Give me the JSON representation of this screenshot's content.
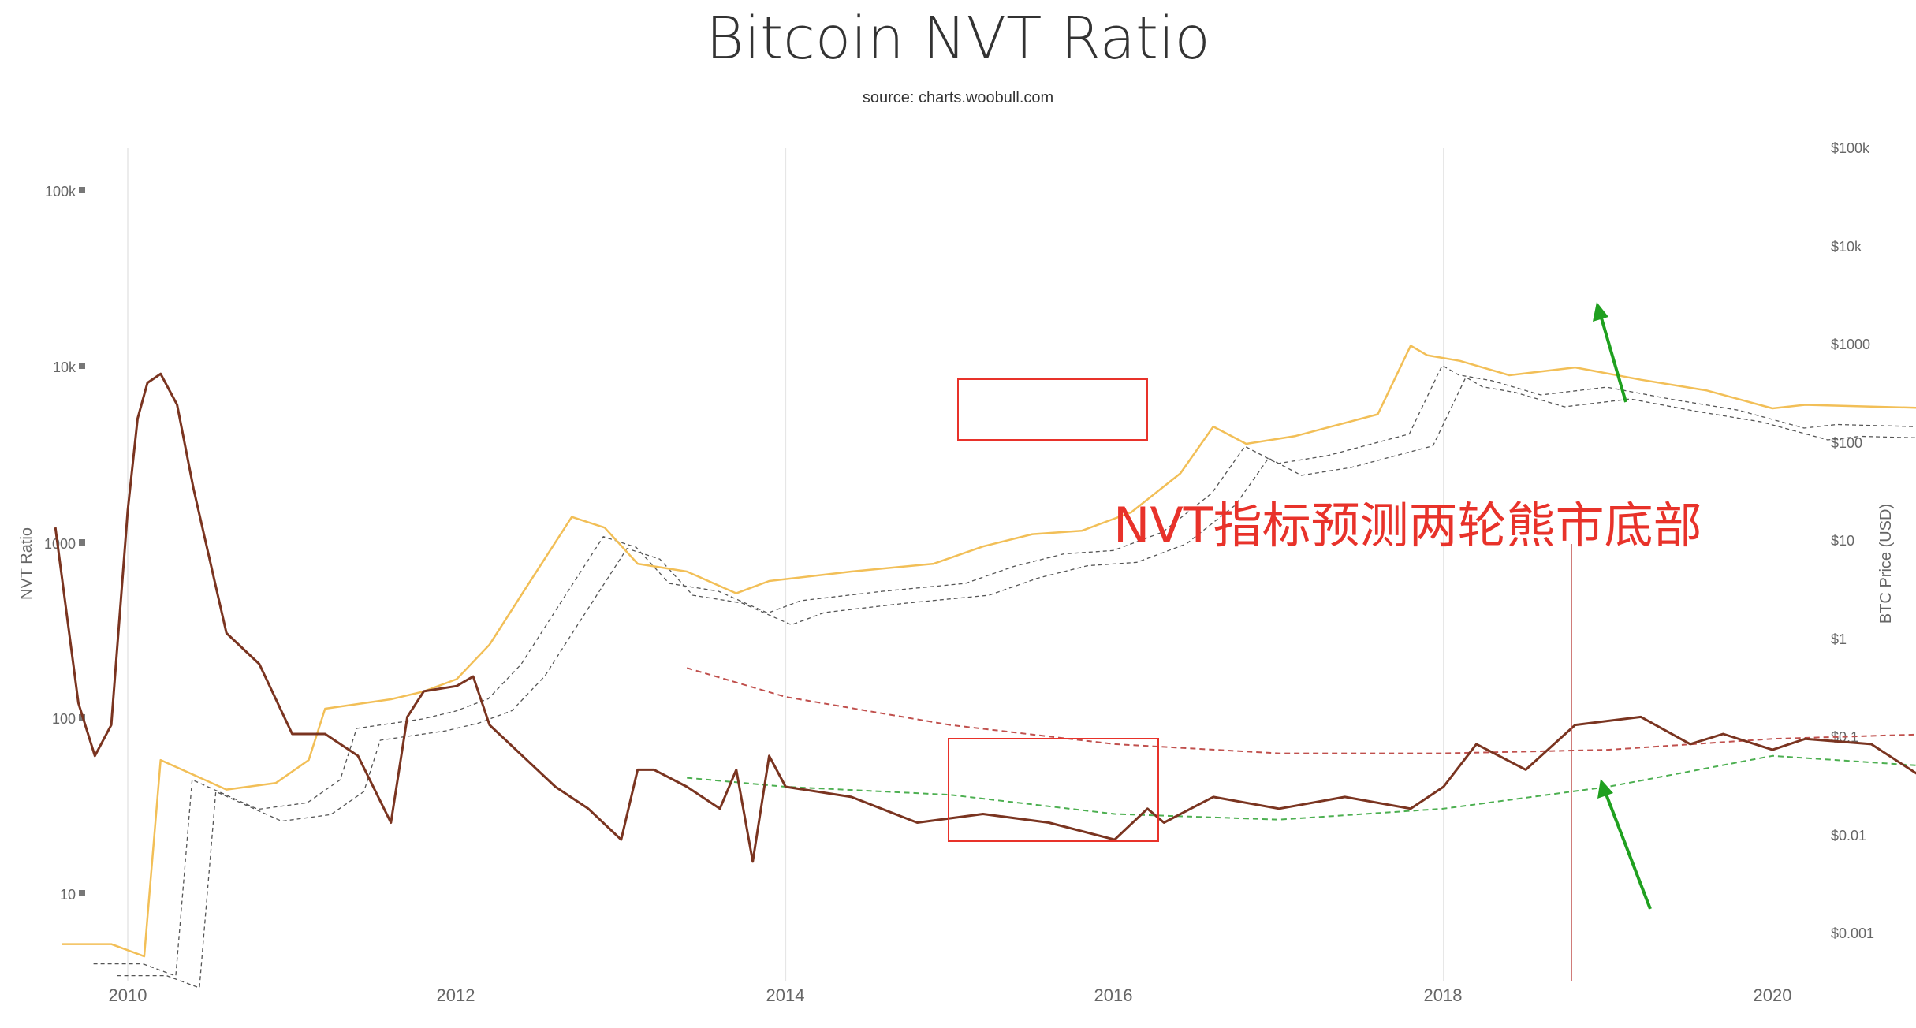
{
  "chart_data": {
    "type": "line",
    "title": "Bitcoin NVT Ratio",
    "subtitle": "source: charts.woobull.com",
    "xlabel": "",
    "ylabel_left": "NVT Ratio",
    "ylabel_right": "BTC Price (USD)",
    "x_ticks": [
      "2010",
      "2012",
      "2014",
      "2016",
      "2018",
      "2020"
    ],
    "y_left_ticks": [
      "100k",
      "10k",
      "1000",
      "100",
      "10"
    ],
    "y_right_ticks": [
      "$100k",
      "$10k",
      "$1000",
      "$100",
      "$10",
      "$1",
      "$0.1",
      "$0.01",
      "$0.001"
    ],
    "y_left_scale": "log",
    "y_right_scale": "log",
    "xlim": [
      2009.8,
      2020.0
    ],
    "y_left_lim": [
      3,
      200000
    ],
    "y_right_lim": [
      0.0005,
      100000
    ],
    "grid": "vertical",
    "colors": {
      "price": "#f2bf57",
      "nvt": "#7a3420",
      "upper_band": "#c0504d",
      "lower_band": "#4caf50",
      "moving_average": "#555555",
      "annotation": "#e8322a",
      "arrow": "#1fa01f"
    },
    "series": [
      {
        "axis": "right",
        "x": [
          2009.8,
          2009.95,
          2010.05,
          2010.1,
          2010.3,
          2010.45,
          2010.55,
          2010.6,
          2010.8,
          2010.9,
          2011.0,
          2011.1,
          2011.2,
          2011.35,
          2011.45,
          2011.55,
          2011.7,
          2011.85,
          2011.95,
          2012.2,
          2012.45,
          2012.6,
          2012.75,
          2012.9,
          2013.05,
          2013.2,
          2013.3,
          2013.4,
          2013.55,
          2013.8,
          2013.9,
          2013.95,
          2014.05,
          2014.2,
          2014.4,
          2014.6,
          2014.8,
          2015.0,
          2015.1,
          2015.3,
          2015.5,
          2015.7,
          2015.85,
          2016.0,
          2016.2,
          2016.45,
          2016.6,
          2016.8,
          2017.0,
          2017.2,
          2017.4,
          2017.6,
          2017.8,
          2017.95,
          2018.05,
          2018.2,
          2018.45,
          2018.6,
          2018.85,
          2018.95,
          2019.1,
          2019.25,
          2019.4,
          2019.5,
          2019.65,
          2019.85
        ],
        "values": [
          0.0008,
          0.0008,
          0.0006,
          0.06,
          0.03,
          0.035,
          0.06,
          0.2,
          0.25,
          0.3,
          0.4,
          0.9,
          3,
          18,
          14,
          6,
          5,
          3,
          4,
          5,
          6,
          9,
          12,
          13,
          20,
          50,
          150,
          100,
          120,
          200,
          1000,
          800,
          700,
          500,
          600,
          450,
          350,
          230,
          250,
          240,
          230,
          290,
          400,
          430,
          420,
          650,
          600,
          700,
          900,
          1200,
          2200,
          4000,
          8000,
          17000,
          11000,
          9000,
          7500,
          6500,
          4000,
          3500,
          4000,
          5500,
          9000,
          12000,
          10000,
          8500
        ]
      },
      {
        "axis": "left",
        "x": [
          2009.78,
          2009.85,
          2009.9,
          2009.95,
          2010.0,
          2010.03,
          2010.06,
          2010.1,
          2010.15,
          2010.2,
          2010.3,
          2010.4,
          2010.5,
          2010.6,
          2010.7,
          2010.8,
          2010.85,
          2010.9,
          2011.0,
          2011.05,
          2011.1,
          2011.2,
          2011.3,
          2011.4,
          2011.5,
          2011.55,
          2011.6,
          2011.7,
          2011.8,
          2011.85,
          2011.9,
          2011.95,
          2012.0,
          2012.2,
          2012.4,
          2012.6,
          2012.8,
          2013.0,
          2013.1,
          2013.15,
          2013.3,
          2013.5,
          2013.7,
          2013.9,
          2014.0,
          2014.1,
          2014.25,
          2014.4,
          2014.6,
          2014.75,
          2014.85,
          2015.0,
          2015.1,
          2015.3,
          2015.5,
          2015.6,
          2015.7,
          2015.8,
          2015.9,
          2016.0,
          2016.1,
          2016.2,
          2016.35,
          2016.5,
          2016.7,
          2016.9,
          2017.0,
          2017.2,
          2017.4,
          2017.6,
          2017.8,
          2017.95,
          2018.05,
          2018.2,
          2018.4,
          2018.6,
          2018.75,
          2018.85,
          2018.95,
          2019.05,
          2019.2,
          2019.4,
          2019.6,
          2019.8,
          2019.85
        ],
        "values": [
          1200,
          120,
          60,
          90,
          1500,
          5000,
          8000,
          9000,
          6000,
          2000,
          300,
          200,
          80,
          80,
          60,
          25,
          100,
          140,
          150,
          170,
          90,
          60,
          40,
          30,
          20,
          50,
          50,
          40,
          30,
          50,
          15,
          60,
          40,
          35,
          25,
          28,
          25,
          20,
          30,
          25,
          35,
          30,
          35,
          30,
          40,
          70,
          50,
          90,
          100,
          70,
          80,
          65,
          75,
          70,
          40,
          30,
          35,
          30,
          32,
          25,
          30,
          35,
          35,
          40,
          35,
          35,
          32,
          30,
          35,
          30,
          28,
          35,
          40,
          70,
          80,
          75,
          80,
          60,
          45,
          65,
          60,
          55,
          75,
          85,
          80
        ]
      },
      {
        "axis": "left",
        "x": [
          2011.7,
          2012.0,
          2012.5,
          2013.0,
          2013.5,
          2014.0,
          2014.5,
          2015.0,
          2015.5,
          2016.0,
          2016.5,
          2017.0,
          2017.5,
          2018.0,
          2018.5,
          2019.0,
          2019.5,
          2019.85
        ],
        "values": [
          190,
          130,
          90,
          70,
          62,
          62,
          65,
          75,
          80,
          78,
          70,
          62,
          60,
          62,
          65,
          72,
          78,
          80
        ]
      },
      {
        "axis": "left",
        "x": [
          2011.7,
          2012.0,
          2012.5,
          2013.0,
          2013.5,
          2014.0,
          2014.5,
          2015.0,
          2015.5,
          2016.0,
          2016.3,
          2016.5,
          2017.0,
          2017.5,
          2018.0,
          2018.5,
          2018.75,
          2019.0,
          2019.5,
          2019.85
        ],
        "values": [
          45,
          40,
          36,
          28,
          26,
          30,
          40,
          60,
          52,
          40,
          32,
          30,
          30,
          28,
          28,
          35,
          50,
          55,
          52,
          50
        ]
      }
    ],
    "annotations": [
      {
        "text": "NVT指标预测两轮熊市底部"
      }
    ]
  }
}
